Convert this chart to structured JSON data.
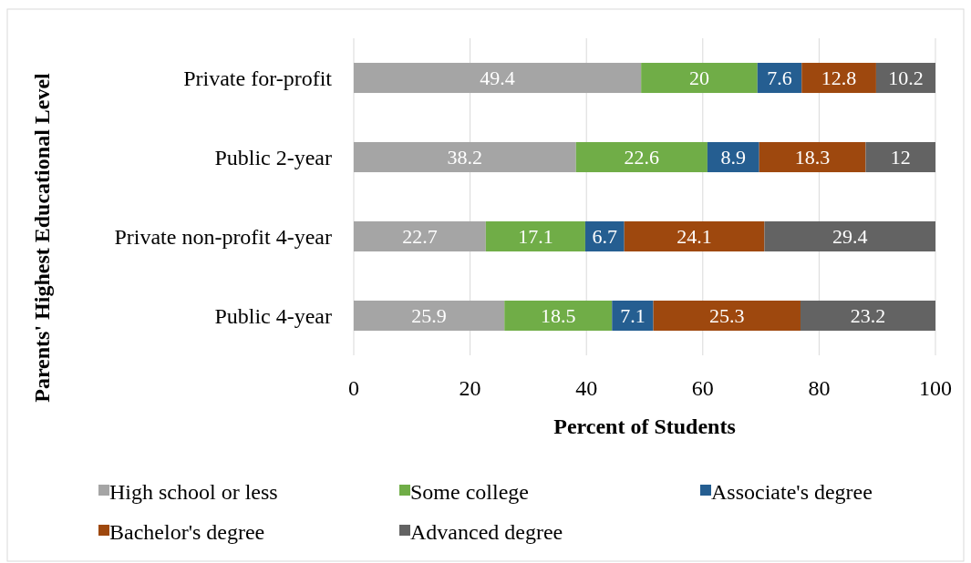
{
  "chart_data": {
    "type": "bar",
    "orientation": "horizontal",
    "stacked": true,
    "xlabel": "Percent of Students",
    "ylabel": "Parents' Highest Educational Level",
    "categories": [
      "Private for-profit",
      "Public 2-year",
      "Private non-profit 4-year",
      "Public 4-year"
    ],
    "series": [
      {
        "name": "High school or less",
        "color": "#a5a5a5",
        "values": [
          49.4,
          38.2,
          22.7,
          25.9
        ]
      },
      {
        "name": "Some college",
        "color": "#70ad47",
        "values": [
          20,
          22.6,
          17.1,
          18.5
        ]
      },
      {
        "name": "Associate's degree",
        "color": "#255e91",
        "values": [
          7.6,
          8.9,
          6.7,
          7.1
        ]
      },
      {
        "name": "Bachelor's degree",
        "color": "#9e480e",
        "values": [
          12.8,
          18.3,
          24.1,
          25.3
        ]
      },
      {
        "name": "Advanced degree",
        "color": "#636363",
        "values": [
          10.2,
          12,
          29.4,
          23.2
        ]
      }
    ],
    "xlim": [
      0,
      100
    ],
    "xticks": [
      0,
      20,
      40,
      60,
      80,
      100
    ],
    "grid": "x",
    "legend": "bottom",
    "data_labels": true
  }
}
